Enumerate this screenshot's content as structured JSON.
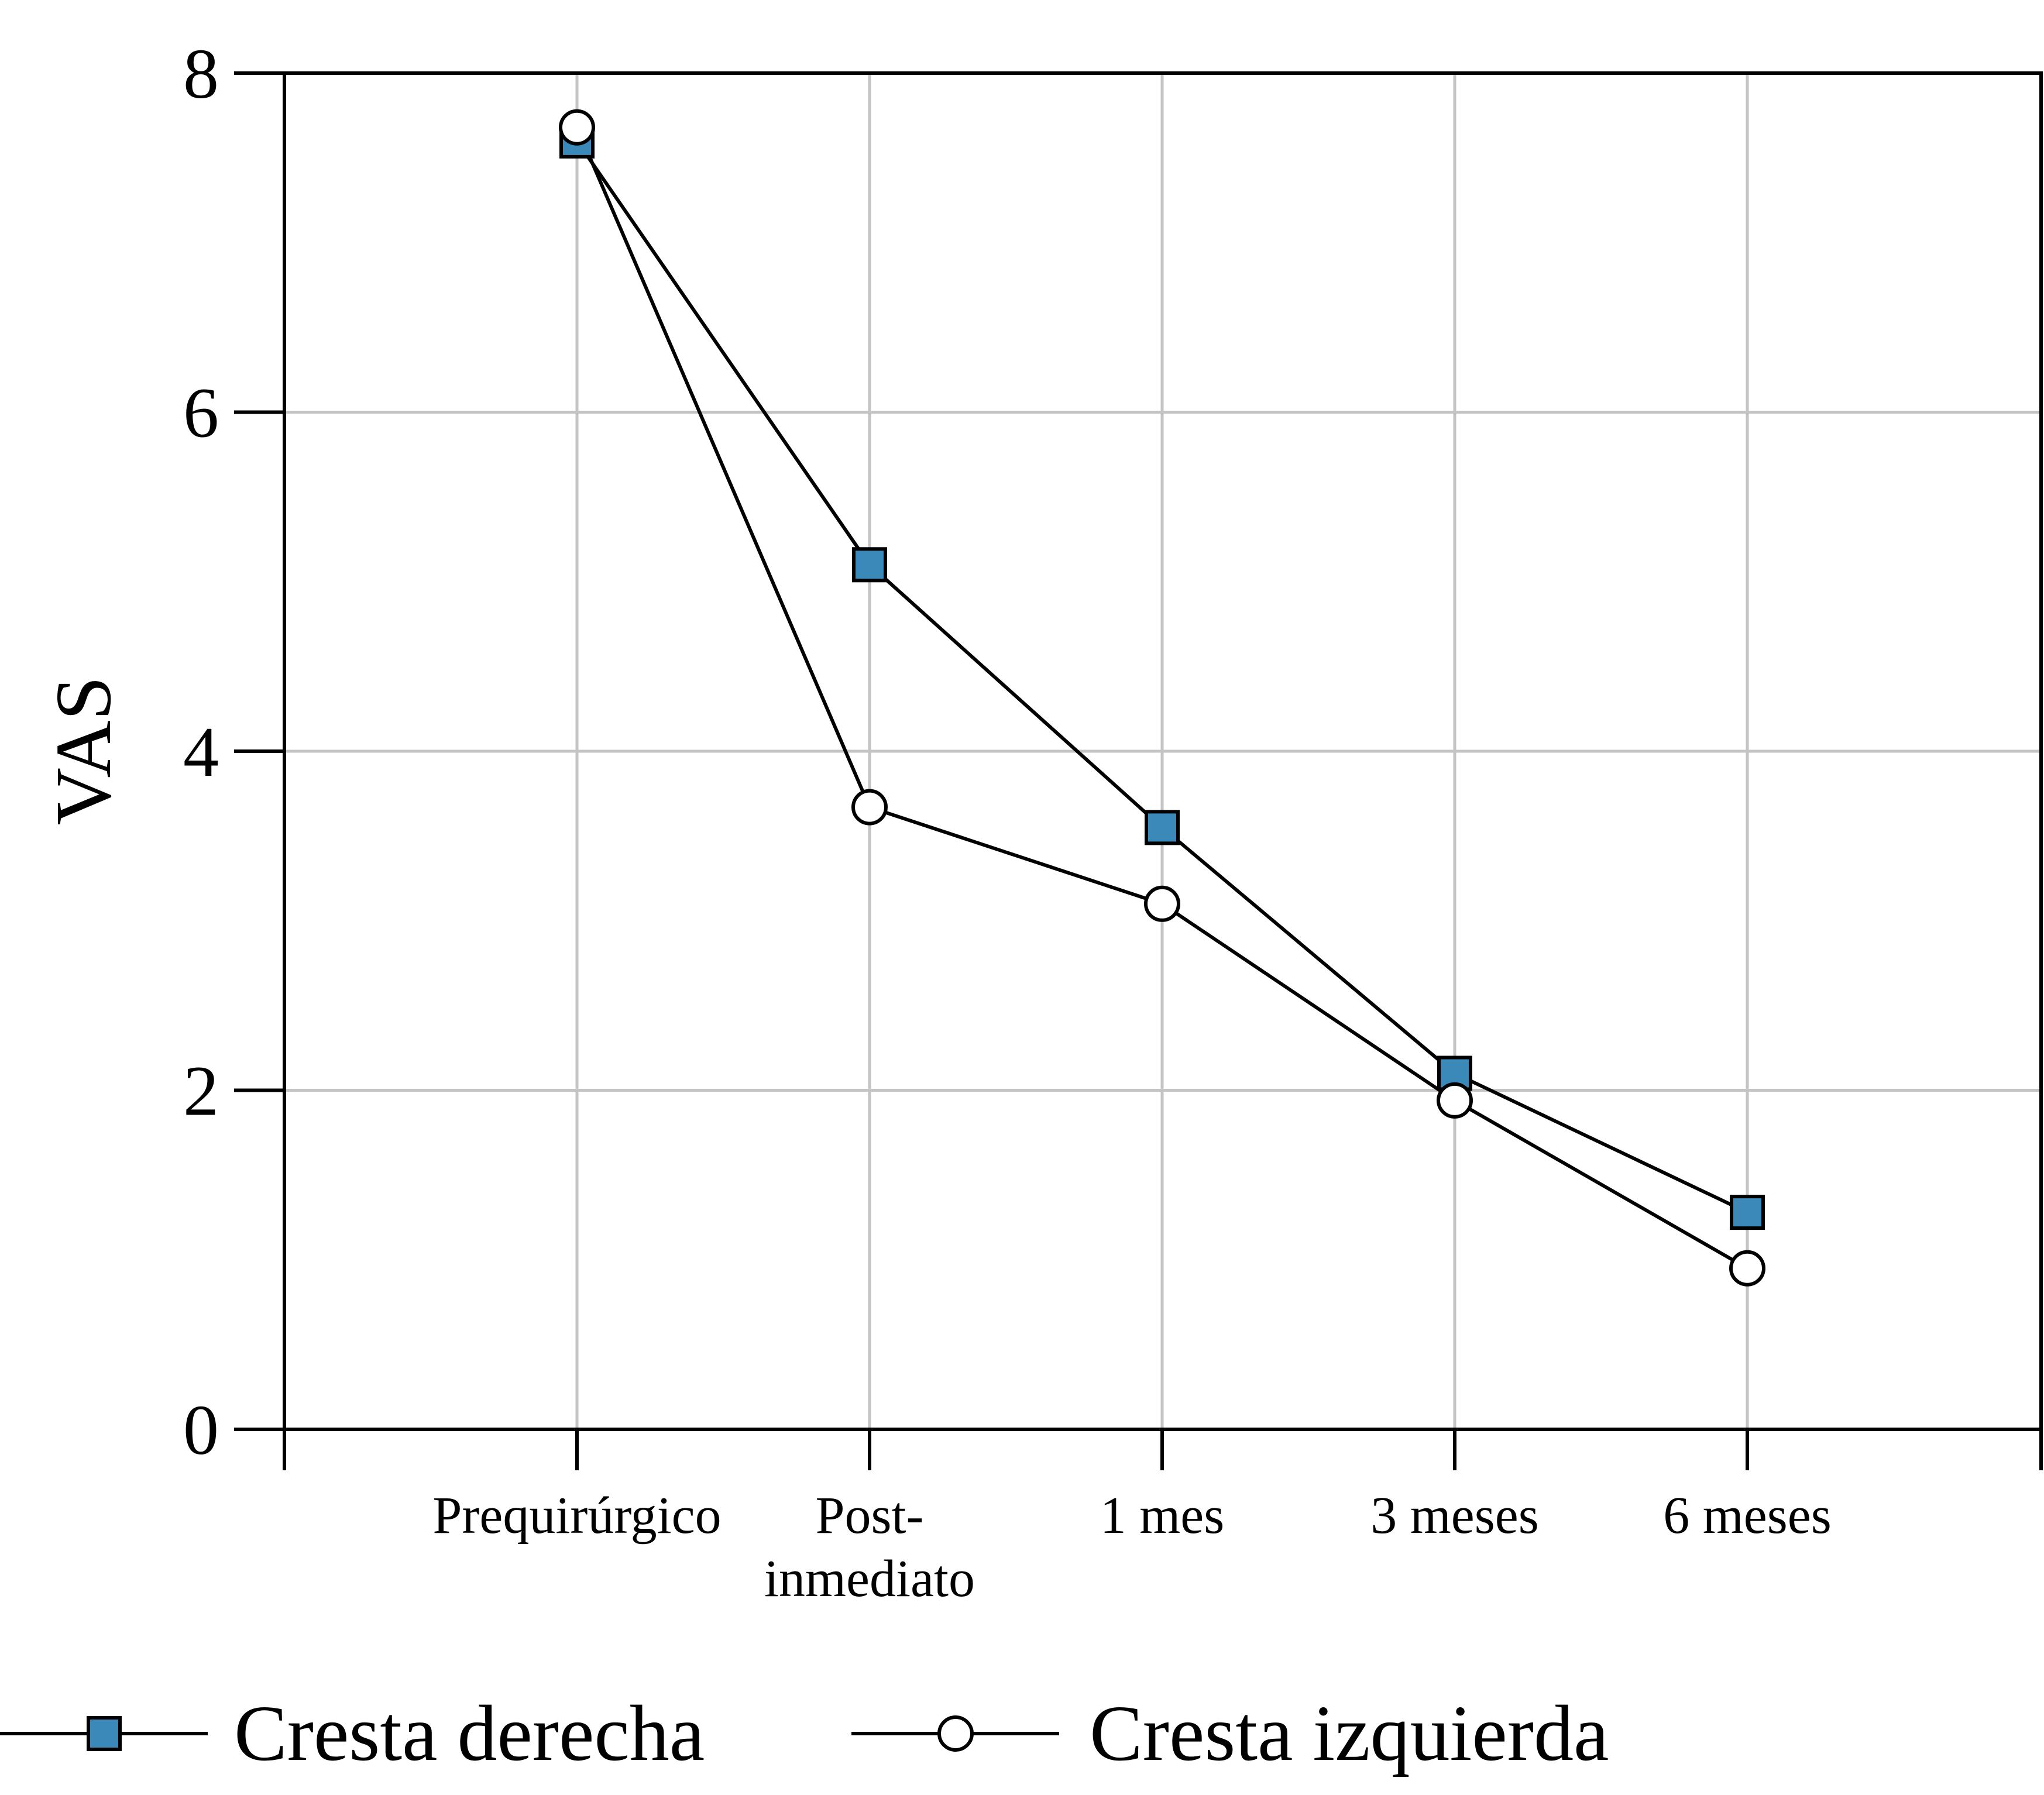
{
  "chart_data": {
    "type": "line",
    "title": "",
    "xlabel": "",
    "ylabel": "VAS",
    "ylim": [
      0,
      8
    ],
    "yticks": [
      "0",
      "2",
      "4",
      "6",
      "8"
    ],
    "categories": [
      [
        "Prequirúrgico"
      ],
      [
        "Post-",
        "inmediato"
      ],
      [
        "1 mes"
      ],
      [
        "3 meses"
      ],
      [
        "6 meses"
      ]
    ],
    "grid": true,
    "legend_position": "bottom",
    "series": [
      {
        "name": "Cresta derecha",
        "marker": "square",
        "marker_color": "#3a89b8",
        "values": [
          7.6,
          5.1,
          3.55,
          2.1,
          1.28
        ]
      },
      {
        "name": "Cresta izquierda",
        "marker": "circle",
        "marker_color": "#ffffff",
        "values": [
          7.68,
          3.67,
          3.1,
          1.94,
          0.95
        ]
      }
    ]
  }
}
